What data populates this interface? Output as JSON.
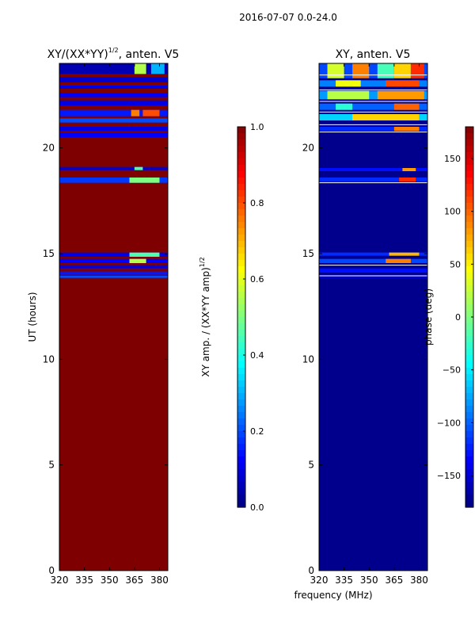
{
  "figure": {
    "suptitle": "2016-07-07 0.0-24.0",
    "xlabel": "frequency (MHz)"
  },
  "colormap": [
    "#00007f",
    "#0000ff",
    "#007fff",
    "#00ffff",
    "#7fff7f",
    "#ffff00",
    "#ff7f00",
    "#ff0000",
    "#7f0000"
  ],
  "chart_data": [
    {
      "type": "heatmap",
      "title": "XY/(XX*YY)",
      "title_sup": "1/2",
      "title_suffix": ", anten. V5",
      "xlabel": "",
      "ylabel": "UT (hours)",
      "xlim": [
        320,
        385
      ],
      "ylim": [
        0,
        24
      ],
      "xticks": [
        320,
        335,
        350,
        365,
        380
      ],
      "yticks": [
        0,
        5,
        10,
        15,
        20
      ],
      "background_value": 1.0,
      "bands": [
        {
          "y": [
            23.5,
            24.0
          ],
          "v": 0.05,
          "hot": [
            [
              365,
              372,
              0.55
            ],
            [
              375,
              383,
              0.3
            ]
          ]
        },
        {
          "y": [
            23.1,
            23.35
          ],
          "v": 0.08
        },
        {
          "y": [
            22.8,
            22.95
          ],
          "v": 0.1
        },
        {
          "y": [
            22.4,
            22.6
          ],
          "v": 0.12
        },
        {
          "y": [
            22.0,
            22.25
          ],
          "v": 0.1
        },
        {
          "y": [
            21.5,
            21.8
          ],
          "v": 0.15,
          "hot": [
            [
              363,
              368,
              0.75
            ],
            [
              370,
              380,
              0.8
            ]
          ]
        },
        {
          "y": [
            21.2,
            21.4
          ],
          "v": 0.2
        },
        {
          "y": [
            20.8,
            21.0
          ],
          "v": 0.1
        },
        {
          "y": [
            20.5,
            20.7
          ],
          "v": 0.12
        },
        {
          "y": [
            18.95,
            19.1
          ],
          "v": 0.08,
          "hot": [
            [
              365,
              370,
              0.45
            ]
          ]
        },
        {
          "y": [
            18.35,
            18.6
          ],
          "v": 0.18,
          "hot": [
            [
              362,
              380,
              0.5
            ]
          ]
        },
        {
          "y": [
            14.85,
            15.05
          ],
          "v": 0.1,
          "hot": [
            [
              362,
              380,
              0.45
            ]
          ]
        },
        {
          "y": [
            14.55,
            14.75
          ],
          "v": 0.12,
          "hot": [
            [
              362,
              372,
              0.55
            ]
          ]
        },
        {
          "y": [
            14.3,
            14.45
          ],
          "v": 0.1
        },
        {
          "y": [
            14.0,
            14.15
          ],
          "v": 0.15
        },
        {
          "y": [
            13.85,
            13.95
          ],
          "v": 0.2
        }
      ],
      "colorbar": {
        "label": "XY amp. / (XX*YY amp)",
        "label_sup": "1/2",
        "lim": [
          0.0,
          1.0
        ],
        "ticks": [
          "0.0",
          "0.2",
          "0.4",
          "0.6",
          "0.8",
          "1.0"
        ]
      }
    },
    {
      "type": "heatmap",
      "title": "XY, anten. V5",
      "xlabel": "",
      "ylabel": "",
      "xlim": [
        320,
        385
      ],
      "ylim": [
        0,
        24
      ],
      "xticks": [
        320,
        335,
        350,
        365,
        380
      ],
      "yticks": [
        0,
        5,
        10,
        15,
        20
      ],
      "background_value": -175,
      "bands": [
        {
          "y": [
            23.3,
            24.0
          ],
          "v": -110,
          "hot": [
            [
              325,
              335,
              30
            ],
            [
              340,
              350,
              90
            ],
            [
              355,
              365,
              -20
            ],
            [
              365,
              375,
              60
            ],
            [
              375,
              383,
              120
            ]
          ]
        },
        {
          "y": [
            22.9,
            23.2
          ],
          "v": -90,
          "hot": [
            [
              330,
              345,
              40
            ],
            [
              360,
              380,
              110
            ]
          ]
        },
        {
          "y": [
            22.3,
            22.7
          ],
          "v": -80,
          "hot": [
            [
              325,
              350,
              20
            ],
            [
              355,
              383,
              80
            ]
          ]
        },
        {
          "y": [
            21.8,
            22.1
          ],
          "v": -100,
          "hot": [
            [
              330,
              340,
              -30
            ],
            [
              365,
              380,
              100
            ]
          ]
        },
        {
          "y": [
            21.3,
            21.6
          ],
          "v": -60,
          "hot": [
            [
              340,
              380,
              60
            ]
          ]
        },
        {
          "y": [
            20.8,
            21.0
          ],
          "v": -120,
          "hot": [
            [
              365,
              380,
              90
            ]
          ]
        },
        {
          "y": [
            18.9,
            19.05
          ],
          "v": -130,
          "hot": [
            [
              370,
              378,
              80
            ]
          ]
        },
        {
          "y": [
            18.4,
            18.6
          ],
          "v": -120,
          "hot": [
            [
              368,
              378,
              120
            ]
          ]
        },
        {
          "y": [
            14.9,
            15.05
          ],
          "v": -120,
          "hot": [
            [
              362,
              380,
              70
            ]
          ]
        },
        {
          "y": [
            14.55,
            14.75
          ],
          "v": -110,
          "hot": [
            [
              360,
              375,
              90
            ]
          ]
        },
        {
          "y": [
            14.1,
            14.3
          ],
          "v": -130
        },
        {
          "y": [
            13.85,
            13.95
          ],
          "v": -140
        }
      ],
      "white_lines": [
        24.0,
        23.45,
        22.75,
        22.2,
        21.7,
        21.1,
        20.75,
        18.35,
        14.45,
        13.95
      ],
      "colorbar": {
        "label": "phase (deg)",
        "lim": [
          -180,
          180
        ],
        "ticks": [
          "−150",
          "−100",
          "−50",
          "0",
          "50",
          "100",
          "150"
        ],
        "tick_values": [
          -150,
          -100,
          -50,
          0,
          50,
          100,
          150
        ]
      }
    }
  ]
}
